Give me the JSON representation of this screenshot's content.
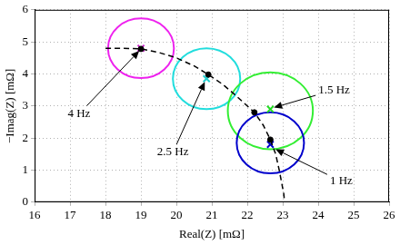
{
  "chart_data": {
    "type": "scatter",
    "x_label": "Real(Z) [mΩ]",
    "y_label": "−Imag(Z) [mΩ]",
    "xlim": [
      16,
      26
    ],
    "xticks": [
      16,
      17,
      18,
      19,
      20,
      21,
      22,
      23,
      24,
      25,
      26
    ],
    "ylim": [
      0,
      6
    ],
    "yticks": [
      0,
      1,
      2,
      3,
      4,
      5,
      6
    ],
    "grid": true,
    "series": [
      {
        "type": "line",
        "color": "#000000",
        "line_style": "dashed",
        "x": [
          18.0,
          18.5,
          19.0,
          19.5,
          20.0,
          20.5,
          20.9,
          21.3,
          21.6,
          21.9,
          22.2,
          22.45,
          22.65,
          22.8,
          22.9,
          22.97,
          23.03,
          23.05
        ],
        "y": [
          4.8,
          4.8,
          4.78,
          4.67,
          4.5,
          4.25,
          3.98,
          3.68,
          3.4,
          3.1,
          2.8,
          2.4,
          1.95,
          1.5,
          1.0,
          0.6,
          0.25,
          0.0
        ]
      },
      {
        "type": "scatter",
        "color": "#000000",
        "marker": "circle",
        "x": [
          19.0,
          20.9,
          22.2,
          22.65
        ],
        "y": [
          4.78,
          3.98,
          2.8,
          1.95
        ]
      },
      {
        "type": "scatter",
        "marker": "cross",
        "colors": [
          "#cc22cc",
          "#22cccc",
          "#22dd22",
          "#0000cc"
        ],
        "x": [
          19.0,
          20.85,
          22.65,
          22.65
        ],
        "y": [
          4.8,
          3.85,
          2.9,
          1.8
        ]
      }
    ],
    "circles": [
      {
        "x": 19.0,
        "y": 4.8,
        "radius": 0.93,
        "color": "#ee22ee"
      },
      {
        "x": 20.85,
        "y": 3.85,
        "radius": 0.95,
        "color": "#22dddd"
      },
      {
        "x": 22.65,
        "y": 2.85,
        "radius": 1.2,
        "color": "#33ee33"
      },
      {
        "x": 22.65,
        "y": 1.85,
        "radius": 0.95,
        "color": "#0000cc"
      }
    ],
    "annotations": [
      {
        "text": "4 Hz",
        "x": 17.25,
        "y": 2.75,
        "arrow_x": 18.95,
        "arrow_y": 4.72
      },
      {
        "text": "2.5 Hz",
        "x": 19.9,
        "y": 1.55,
        "arrow_x": 20.8,
        "arrow_y": 3.75
      },
      {
        "text": "1.5 Hz",
        "x": 24.45,
        "y": 3.5,
        "arrow_x": 22.75,
        "arrow_y": 2.95
      },
      {
        "text": "1 Hz",
        "x": 24.65,
        "y": 0.65,
        "arrow_x": 22.8,
        "arrow_y": 1.65
      }
    ]
  }
}
